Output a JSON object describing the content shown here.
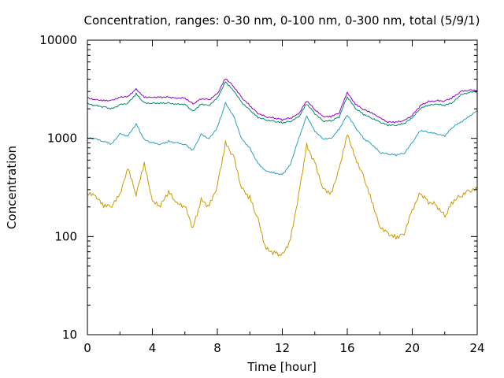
{
  "chart_data": {
    "type": "line",
    "title": "Concentration, ranges: 0-30 nm, 0-100 nm, 0-300 nm, total (5/9/1)",
    "xlabel": "Time [hour]",
    "ylabel": "Concentration",
    "xlim": [
      0,
      24
    ],
    "ylim": [
      10,
      10000
    ],
    "yscale": "log",
    "grid": false,
    "legend": "none",
    "x_ticks": [
      "0",
      "4",
      "8",
      "12",
      "16",
      "20",
      "24"
    ],
    "y_ticks": [
      "10",
      "100",
      "1000",
      "10000"
    ],
    "x": [
      0,
      0.5,
      1,
      1.5,
      2,
      2.5,
      3,
      3.5,
      4,
      4.5,
      5,
      5.5,
      6,
      6.5,
      7,
      7.5,
      8,
      8.5,
      9,
      9.5,
      10,
      10.5,
      11,
      11.5,
      12,
      12.5,
      13,
      13.5,
      14,
      14.5,
      15,
      15.5,
      16,
      16.5,
      17,
      17.5,
      18,
      18.5,
      19,
      19.5,
      20,
      20.5,
      21,
      21.5,
      22,
      22.5,
      23,
      23.5,
      24
    ],
    "series": [
      {
        "color": "#cc9900",
        "values": [
          270,
          250,
          200,
          200,
          260,
          480,
          260,
          540,
          220,
          200,
          280,
          210,
          200,
          120,
          230,
          200,
          330,
          880,
          650,
          310,
          250,
          150,
          75,
          70,
          65,
          95,
          270,
          860,
          580,
          320,
          280,
          500,
          1150,
          650,
          420,
          240,
          130,
          110,
          100,
          110,
          190,
          280,
          230,
          210,
          160,
          230,
          260,
          290,
          300
        ]
      },
      {
        "color": "#2aa0c0",
        "values": [
          1000,
          980,
          920,
          870,
          1100,
          1050,
          1400,
          960,
          900,
          870,
          930,
          900,
          870,
          760,
          1100,
          1000,
          1300,
          2300,
          1700,
          1000,
          800,
          560,
          470,
          450,
          430,
          550,
          1000,
          1700,
          1200,
          1000,
          1000,
          1250,
          1750,
          1300,
          1000,
          880,
          720,
          690,
          680,
          700,
          900,
          1200,
          1150,
          1100,
          1050,
          1300,
          1450,
          1650,
          1900
        ]
      },
      {
        "color": "#008a6e",
        "values": [
          2250,
          2150,
          2100,
          2000,
          2200,
          2300,
          2850,
          2300,
          2300,
          2300,
          2300,
          2250,
          2250,
          1900,
          2250,
          2200,
          2600,
          3800,
          3100,
          2350,
          1950,
          1650,
          1550,
          1500,
          1450,
          1500,
          1650,
          2250,
          1800,
          1500,
          1500,
          1650,
          2650,
          2000,
          1750,
          1600,
          1450,
          1350,
          1350,
          1400,
          1600,
          2000,
          2150,
          2200,
          2150,
          2300,
          2750,
          2900,
          3000
        ]
      },
      {
        "color": "#9400d3",
        "values": [
          2600,
          2500,
          2450,
          2450,
          2650,
          2700,
          3200,
          2650,
          2650,
          2650,
          2650,
          2600,
          2600,
          2250,
          2550,
          2500,
          2850,
          4100,
          3400,
          2600,
          2150,
          1800,
          1650,
          1600,
          1550,
          1600,
          1750,
          2400,
          1950,
          1650,
          1650,
          1800,
          2900,
          2200,
          1950,
          1800,
          1600,
          1450,
          1450,
          1500,
          1700,
          2150,
          2350,
          2400,
          2400,
          2600,
          3000,
          3100,
          3100
        ]
      }
    ]
  }
}
